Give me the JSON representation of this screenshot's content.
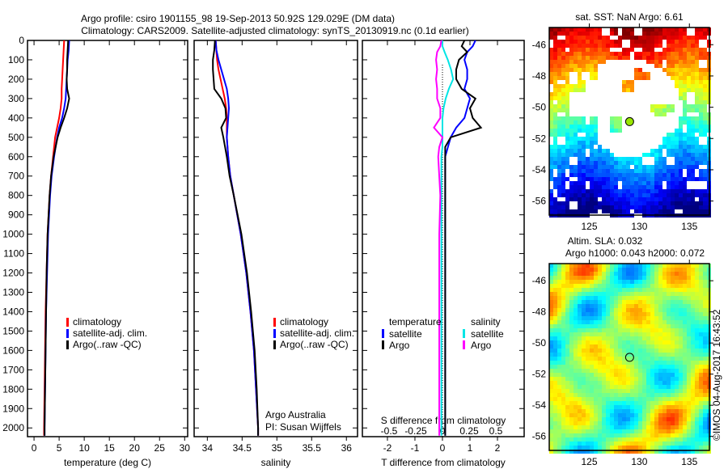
{
  "title_line1": "Argo profile: csiro 1901155_98 19-Sep-2013 50.92S 129.029E (DM data)",
  "title_line2": "Climatology: CARS2009. Satellite-adjusted climatology: synTS_20130919.nc (0.1d earlier)",
  "chart_data": [
    {
      "type": "line",
      "name": "temperature-profile",
      "xlabel": "temperature (deg C)",
      "ylabel": "",
      "xlim": [
        -1.3,
        30.6
      ],
      "ylim": [
        0,
        2045
      ],
      "xticks": [
        0,
        5,
        10,
        15,
        20,
        25,
        30
      ],
      "yticks": [
        0,
        100,
        200,
        300,
        400,
        500,
        600,
        700,
        800,
        900,
        1000,
        1100,
        1200,
        1300,
        1400,
        1500,
        1600,
        1700,
        1800,
        1900,
        2000
      ],
      "legend": [
        "climatology",
        "satellite-adj. clim.",
        "Argo(..raw -QC)"
      ],
      "depth": [
        0,
        50,
        100,
        150,
        200,
        250,
        300,
        350,
        400,
        450,
        500,
        600,
        700,
        800,
        1000,
        1200,
        1400,
        1600,
        1800,
        2000,
        2040
      ],
      "series": [
        {
          "name": "climatology",
          "color": "#ff0000",
          "values": [
            6.0,
            5.9,
            5.8,
            5.7,
            5.6,
            5.5,
            5.5,
            5.3,
            5.0,
            4.6,
            4.2,
            3.8,
            3.4,
            3.1,
            2.7,
            2.5,
            2.3,
            2.2,
            2.1,
            2.0,
            2.0
          ]
        },
        {
          "name": "satellite-adj. clim.",
          "color": "#0000ff",
          "values": [
            7.0,
            6.9,
            6.7,
            6.6,
            6.5,
            6.4,
            6.3,
            6.0,
            5.6,
            5.0,
            4.6,
            4.0,
            3.5,
            3.2,
            2.8,
            2.6,
            2.4,
            2.3,
            2.2,
            2.1,
            2.1
          ]
        },
        {
          "name": "Argo(..raw -QC)",
          "color": "#000000",
          "values": [
            6.8,
            6.7,
            6.6,
            6.6,
            6.5,
            6.6,
            7.0,
            6.6,
            6.0,
            5.3,
            4.7,
            3.9,
            3.4,
            3.1,
            2.7,
            2.5,
            2.4,
            2.3,
            2.2,
            2.1,
            2.1
          ]
        }
      ]
    },
    {
      "type": "line",
      "name": "salinity-profile",
      "xlabel": "salinity",
      "xlim": [
        33.81,
        36.16
      ],
      "ylim": [
        0,
        2045
      ],
      "xticks": [
        34,
        34.5,
        35,
        35.5,
        36
      ],
      "legend": [
        "climatology",
        "satellite-adj. clim.",
        "Argo(..raw -QC)"
      ],
      "annotation": [
        "Argo Australia",
        "PI: Susan Wijffels"
      ],
      "depth": [
        0,
        50,
        100,
        150,
        200,
        250,
        300,
        350,
        400,
        450,
        500,
        600,
        700,
        800,
        1000,
        1200,
        1400,
        1600,
        1800,
        2000,
        2040
      ],
      "series": [
        {
          "name": "climatology",
          "color": "#ff0000",
          "values": [
            34.12,
            34.13,
            34.14,
            34.16,
            34.19,
            34.22,
            34.25,
            34.27,
            34.28,
            34.28,
            34.28,
            34.3,
            34.33,
            34.38,
            34.48,
            34.56,
            34.62,
            34.67,
            34.7,
            34.73,
            34.73
          ]
        },
        {
          "name": "satellite-adj. clim.",
          "color": "#0000ff",
          "values": [
            34.12,
            34.13,
            34.16,
            34.2,
            34.24,
            34.28,
            34.3,
            34.31,
            34.3,
            34.29,
            34.28,
            34.3,
            34.33,
            34.38,
            34.48,
            34.56,
            34.62,
            34.67,
            34.7,
            34.73,
            34.73
          ]
        },
        {
          "name": "Argo(..raw -QC)",
          "color": "#000000",
          "values": [
            34.11,
            34.1,
            34.08,
            34.08,
            34.09,
            34.1,
            34.2,
            34.26,
            34.27,
            34.2,
            34.23,
            34.28,
            34.32,
            34.38,
            34.49,
            34.57,
            34.63,
            34.68,
            34.71,
            34.73,
            34.73
          ]
        }
      ]
    },
    {
      "type": "line",
      "name": "difference-profile",
      "xlabel": "T difference from climatology",
      "xlabel2": "S difference from climatology",
      "xlim": [
        -2.91,
        2.97
      ],
      "xticks": [
        -2,
        -1,
        0,
        1,
        2
      ],
      "xticks2": [
        -0.5,
        -0.25,
        0,
        0.25,
        0.5
      ],
      "legend_temperature_title": "temperature",
      "legend_salinity_title": "salinity",
      "legend_temperature": [
        "satellite",
        "Argo"
      ],
      "legend_salinity": [
        "satellite",
        "Argo"
      ],
      "depth": [
        0,
        30,
        60,
        100,
        150,
        200,
        250,
        300,
        350,
        400,
        450,
        500,
        550,
        600,
        800,
        1000,
        1200,
        1500,
        1800,
        2000,
        2040
      ],
      "series": [
        {
          "name": "temperature satellite",
          "axis": "T",
          "color": "#0000ff",
          "values": [
            1.2,
            1.1,
            0.9,
            0.8,
            0.9,
            0.9,
            0.8,
            1.0,
            0.9,
            0.8,
            0.5,
            0.3,
            0.2,
            0.1,
            0.1,
            0.1,
            0.1,
            0.1,
            0.1,
            0.1,
            0.1
          ]
        },
        {
          "name": "temperature Argo",
          "axis": "T",
          "color": "#000000",
          "values": [
            0.8,
            0.7,
            0.9,
            0.6,
            0.5,
            0.5,
            0.7,
            1.2,
            1.0,
            1.1,
            1.4,
            0.3,
            0.1,
            0.1,
            0.1,
            0.1,
            0.1,
            0.1,
            0.1,
            0.1,
            0.1
          ]
        },
        {
          "name": "salinity satellite",
          "axis": "S",
          "color": "#00e5e5",
          "values": [
            0,
            0.0,
            0.02,
            0.05,
            0.08,
            0.1,
            0.06,
            0.03,
            0.01,
            0.0,
            0.0,
            0.0,
            0.0,
            -0.01,
            -0.01,
            -0.01,
            -0.01,
            -0.01,
            -0.01,
            -0.01,
            -0.01
          ]
        },
        {
          "name": "salinity Argo",
          "axis": "S",
          "color": "#ff00ff",
          "values": [
            -0.01,
            -0.02,
            -0.05,
            -0.06,
            -0.05,
            -0.06,
            -0.05,
            -0.05,
            -0.02,
            -0.02,
            -0.08,
            0.0,
            -0.03,
            -0.04,
            -0.02,
            -0.03,
            -0.03,
            -0.03,
            -0.03,
            -0.03,
            -0.03
          ]
        }
      ]
    },
    {
      "type": "heatmap",
      "name": "sst-map",
      "title": "sat. SST: NaN Argo: 6.61",
      "xlim": [
        121,
        137
      ],
      "ylim": [
        -56.9,
        -44.9
      ],
      "xticks": [
        125,
        130,
        135
      ],
      "yticks": [
        -46,
        -48,
        -50,
        -52,
        -54,
        -56
      ],
      "argo_position": [
        129.029,
        -50.92
      ]
    },
    {
      "type": "heatmap",
      "name": "sla-map",
      "title_line1": "Altim. SLA: 0.032",
      "title_line2": "Argo h1000: 0.043 h2000: 0.072",
      "xlim": [
        121,
        137
      ],
      "ylim": [
        -56.9,
        -44.9
      ],
      "xticks": [
        125,
        130,
        135
      ],
      "yticks": [
        -46,
        -48,
        -50,
        -52,
        -54,
        -56
      ],
      "argo_position": [
        129.029,
        -50.92
      ]
    }
  ],
  "footer_stamp": "©IMOS 04-Aug-2017 16:43:52"
}
